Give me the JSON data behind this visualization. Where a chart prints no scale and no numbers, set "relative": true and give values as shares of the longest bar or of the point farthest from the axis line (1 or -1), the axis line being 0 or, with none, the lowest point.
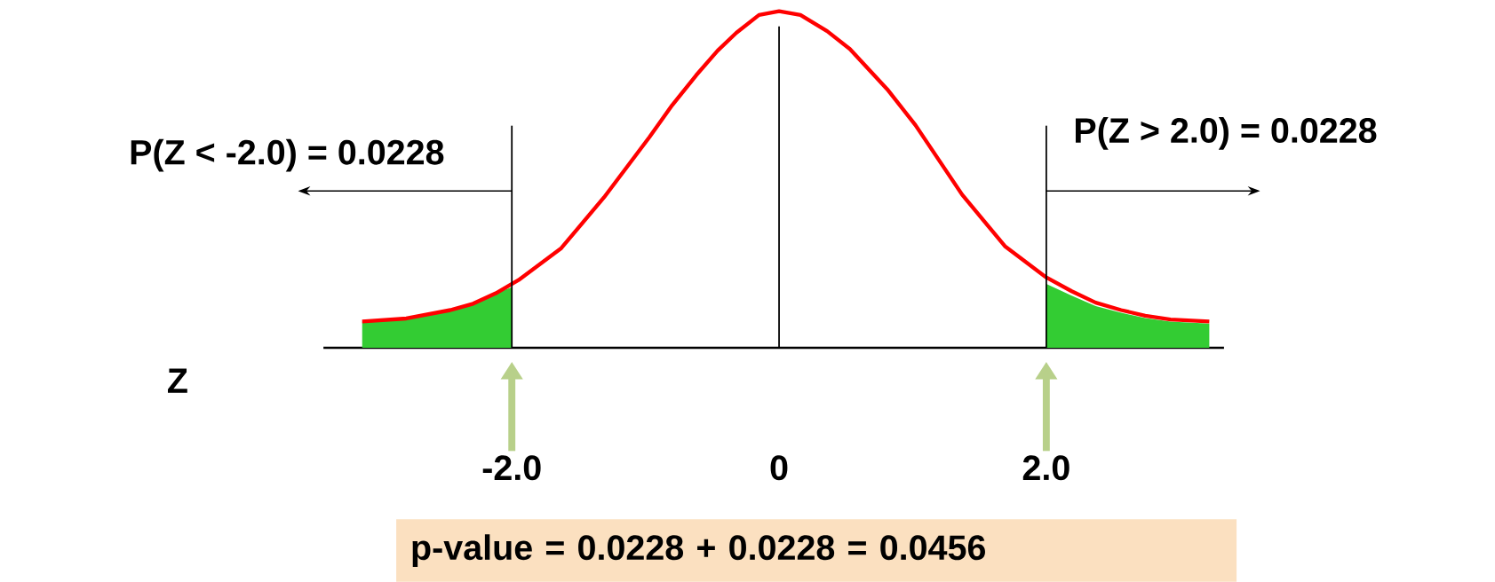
{
  "chart_data": {
    "type": "line",
    "relative": true,
    "xlabel": "Z",
    "x": [
      -3.12,
      -2.79,
      -2.46,
      -2.29,
      -2.12,
      -1.95,
      -1.63,
      -1.31,
      -0.97,
      -0.8,
      -0.62,
      -0.46,
      -0.32,
      -0.15,
      0,
      0.16,
      0.36,
      0.53,
      0.81,
      1.02,
      1.37,
      1.69,
      2.0,
      2.19,
      2.37,
      2.56,
      2.74,
      2.93,
      3.22
    ],
    "series": [
      {
        "type": "area",
        "color": "#33cc33",
        "x": [
          -3.12,
          -2.79,
          -2.46,
          -2.29,
          -2.12,
          -2.0
        ],
        "values": [
          0.078,
          0.087,
          0.112,
          0.131,
          0.162,
          0.18
        ]
      },
      {
        "type": "area",
        "color": "#33cc33",
        "x": [
          2.0,
          2.19,
          2.37,
          2.56,
          2.74,
          2.93,
          3.22
        ],
        "values": [
          0.19,
          0.155,
          0.124,
          0.104,
          0.088,
          0.078,
          0.072
        ]
      },
      {
        "color": "#ff0000",
        "values": [
          0.078,
          0.087,
          0.112,
          0.131,
          0.162,
          0.201,
          0.296,
          0.447,
          0.626,
          0.721,
          0.81,
          0.883,
          0.936,
          0.989,
          1,
          0.989,
          0.941,
          0.888,
          0.768,
          0.662,
          0.455,
          0.302,
          0.209,
          0.168,
          0.134,
          0.112,
          0.095,
          0.084,
          0.078
        ]
      }
    ],
    "xlim": [
      -3.41,
      3.33
    ],
    "xticks": [
      {
        "value": -2.0,
        "label": "-2.0"
      },
      0,
      {
        "value": 2.0,
        "label": "2.0"
      }
    ],
    "ref_lines": [
      {
        "axis": "x",
        "value": -2.0,
        "label": "P(Z < -2.0) = 0.0228"
      },
      {
        "axis": "x",
        "value": 0
      },
      {
        "axis": "x",
        "value": 2.0,
        "label": "P(Z > 2.0) = 0.0228"
      }
    ],
    "annotations": [
      "p-value = 0.0228 + 0.0228 = 0.0456"
    ]
  }
}
